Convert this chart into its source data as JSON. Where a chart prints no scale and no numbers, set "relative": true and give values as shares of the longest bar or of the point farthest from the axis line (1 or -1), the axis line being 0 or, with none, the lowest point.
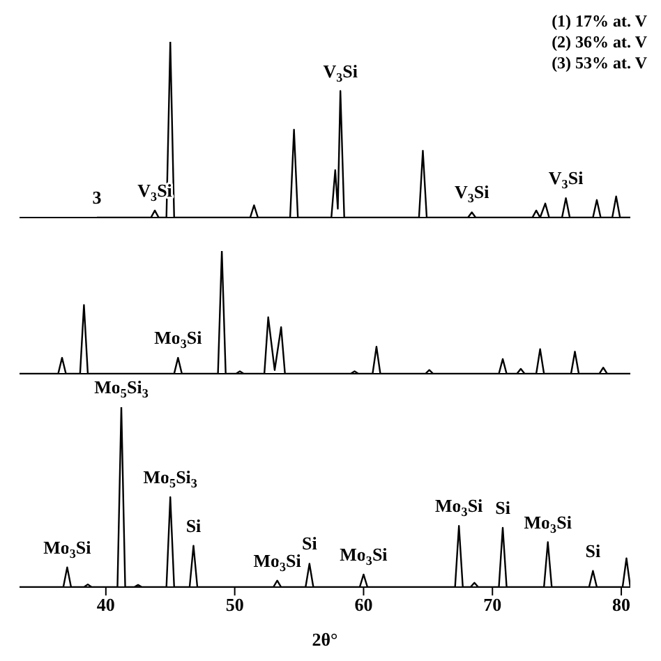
{
  "chart_data": [
    {
      "type": "line",
      "relative": true,
      "tick_labels": false,
      "xlim": [
        33.3,
        80.7
      ],
      "annotations": [
        "(1) 17% at. V",
        "(2) 36% at. V",
        "(3) 53% at. V",
        {
          "text": "3",
          "x": 39.3,
          "y": 0
        },
        {
          "text": "V$_{3}$Si",
          "x": 43.8,
          "y": 0.04
        },
        {
          "text": "V$_{3}$Si",
          "x": 58.2,
          "y": 0.72
        },
        {
          "text": "V$_{3}$Si",
          "x": 68.4,
          "y": 0.03
        },
        {
          "text": "V$_{3}$Si",
          "x": 75.7,
          "y": 0.11
        }
      ],
      "x": [
        39.3,
        43.5,
        43.8,
        44.1,
        44.7,
        45.0,
        45.3,
        51.2,
        51.5,
        51.8,
        54.3,
        54.6,
        54.9,
        57.5,
        57.8,
        58.0,
        58.2,
        58.5,
        64.3,
        64.6,
        64.9,
        68.1,
        68.4,
        68.7,
        73.1,
        73.4,
        73.7,
        74.1,
        74.4,
        75.4,
        75.7,
        76.0,
        77.8,
        78.1,
        78.4,
        79.3,
        79.6,
        79.9,
        80.7
      ],
      "series": [
        {
          "color": "#000000",
          "values": [
            0,
            0,
            0.04,
            0,
            0,
            1,
            0,
            0,
            0.07,
            0,
            0,
            0.5,
            0,
            0,
            0.27,
            0.05,
            0.72,
            0,
            0,
            0.38,
            0,
            0,
            0.03,
            0,
            0,
            0.04,
            0,
            0.08,
            0,
            0,
            0.11,
            0,
            0,
            0.1,
            0,
            0,
            0.12,
            0,
            0
          ]
        }
      ]
    },
    {
      "type": "line",
      "relative": true,
      "tick_labels": false,
      "xlim": [
        33.3,
        80.7
      ],
      "annotations": [
        {
          "text": "Mo$_{3}$Si",
          "x": 45.6,
          "y": 0.13
        }
      ],
      "x": [
        33.3,
        36.3,
        36.6,
        36.9,
        38.0,
        38.3,
        38.6,
        45.3,
        45.6,
        45.9,
        48.7,
        49.0,
        49.3,
        50.1,
        50.4,
        50.7,
        52.3,
        52.6,
        53.1,
        53.6,
        53.9,
        59.0,
        59.3,
        59.6,
        60.7,
        61.0,
        61.3,
        64.8,
        65.1,
        65.4,
        70.5,
        70.8,
        71.1,
        71.9,
        72.2,
        72.5,
        73.4,
        73.7,
        74.0,
        76.1,
        76.4,
        76.7,
        78.3,
        78.6,
        78.9,
        80.7
      ],
      "series": [
        {
          "color": "#000000",
          "values": [
            0,
            0,
            0.13,
            0,
            0,
            0.56,
            0,
            0,
            0.13,
            0,
            0,
            1,
            0,
            0,
            0.02,
            0,
            0,
            0.46,
            0.03,
            0.38,
            0,
            0,
            0.02,
            0,
            0,
            0.22,
            0,
            0,
            0.03,
            0,
            0,
            0.12,
            0,
            0,
            0.04,
            0,
            0,
            0.2,
            0,
            0,
            0.18,
            0,
            0,
            0.05,
            0,
            0
          ]
        }
      ]
    },
    {
      "type": "line",
      "relative": true,
      "xlim": [
        33.3,
        80.7
      ],
      "xticks": [
        40,
        50,
        60,
        70,
        80
      ],
      "xlabel": "2θ°",
      "annotations": [
        {
          "text": "Mo$_{3}$Si",
          "x": 37.0,
          "y": 0.11
        },
        {
          "text": "Mo$_{5}$Si$_{3}$",
          "x": 41.2,
          "y": 1
        },
        {
          "text": "Mo$_{5}$Si$_{3}$",
          "x": 45.0,
          "y": 0.5
        },
        {
          "text": "Si",
          "x": 46.8,
          "y": 0.23
        },
        {
          "text": "Mo$_{3}$Si",
          "x": 53.3,
          "y": 0.036
        },
        {
          "text": "Si",
          "x": 55.8,
          "y": 0.13
        },
        {
          "text": "Mo$_{3}$Si",
          "x": 60.0,
          "y": 0.07
        },
        {
          "text": "Mo$_{3}$Si",
          "x": 67.4,
          "y": 0.34
        },
        {
          "text": "Si",
          "x": 70.8,
          "y": 0.33
        },
        {
          "text": "Mo$_{3}$Si",
          "x": 74.3,
          "y": 0.25
        },
        {
          "text": "Si",
          "x": 77.8,
          "y": 0.09
        }
      ],
      "x": [
        33.3,
        36.7,
        37.0,
        37.3,
        38.3,
        38.6,
        38.9,
        40.9,
        41.2,
        41.5,
        42.2,
        42.5,
        42.8,
        44.7,
        45.0,
        45.3,
        46.5,
        46.8,
        47.1,
        53.0,
        53.3,
        53.6,
        55.5,
        55.8,
        56.1,
        59.7,
        60.0,
        60.3,
        67.1,
        67.4,
        67.7,
        68.3,
        68.6,
        68.9,
        70.5,
        70.8,
        71.1,
        74.0,
        74.3,
        74.6,
        77.5,
        77.8,
        78.1,
        80.1,
        80.4,
        80.7
      ],
      "series": [
        {
          "color": "#000000",
          "values": [
            0,
            0,
            0.11,
            0,
            0,
            0.015,
            0,
            0,
            1,
            0,
            0,
            0.012,
            0,
            0,
            0.5,
            0,
            0,
            0.23,
            0,
            0,
            0.036,
            0,
            0,
            0.13,
            0,
            0,
            0.07,
            0,
            0,
            0.34,
            0,
            0,
            0.024,
            0,
            0,
            0.33,
            0,
            0,
            0.25,
            0,
            0,
            0.09,
            0,
            0,
            0.16,
            0
          ]
        }
      ]
    }
  ]
}
